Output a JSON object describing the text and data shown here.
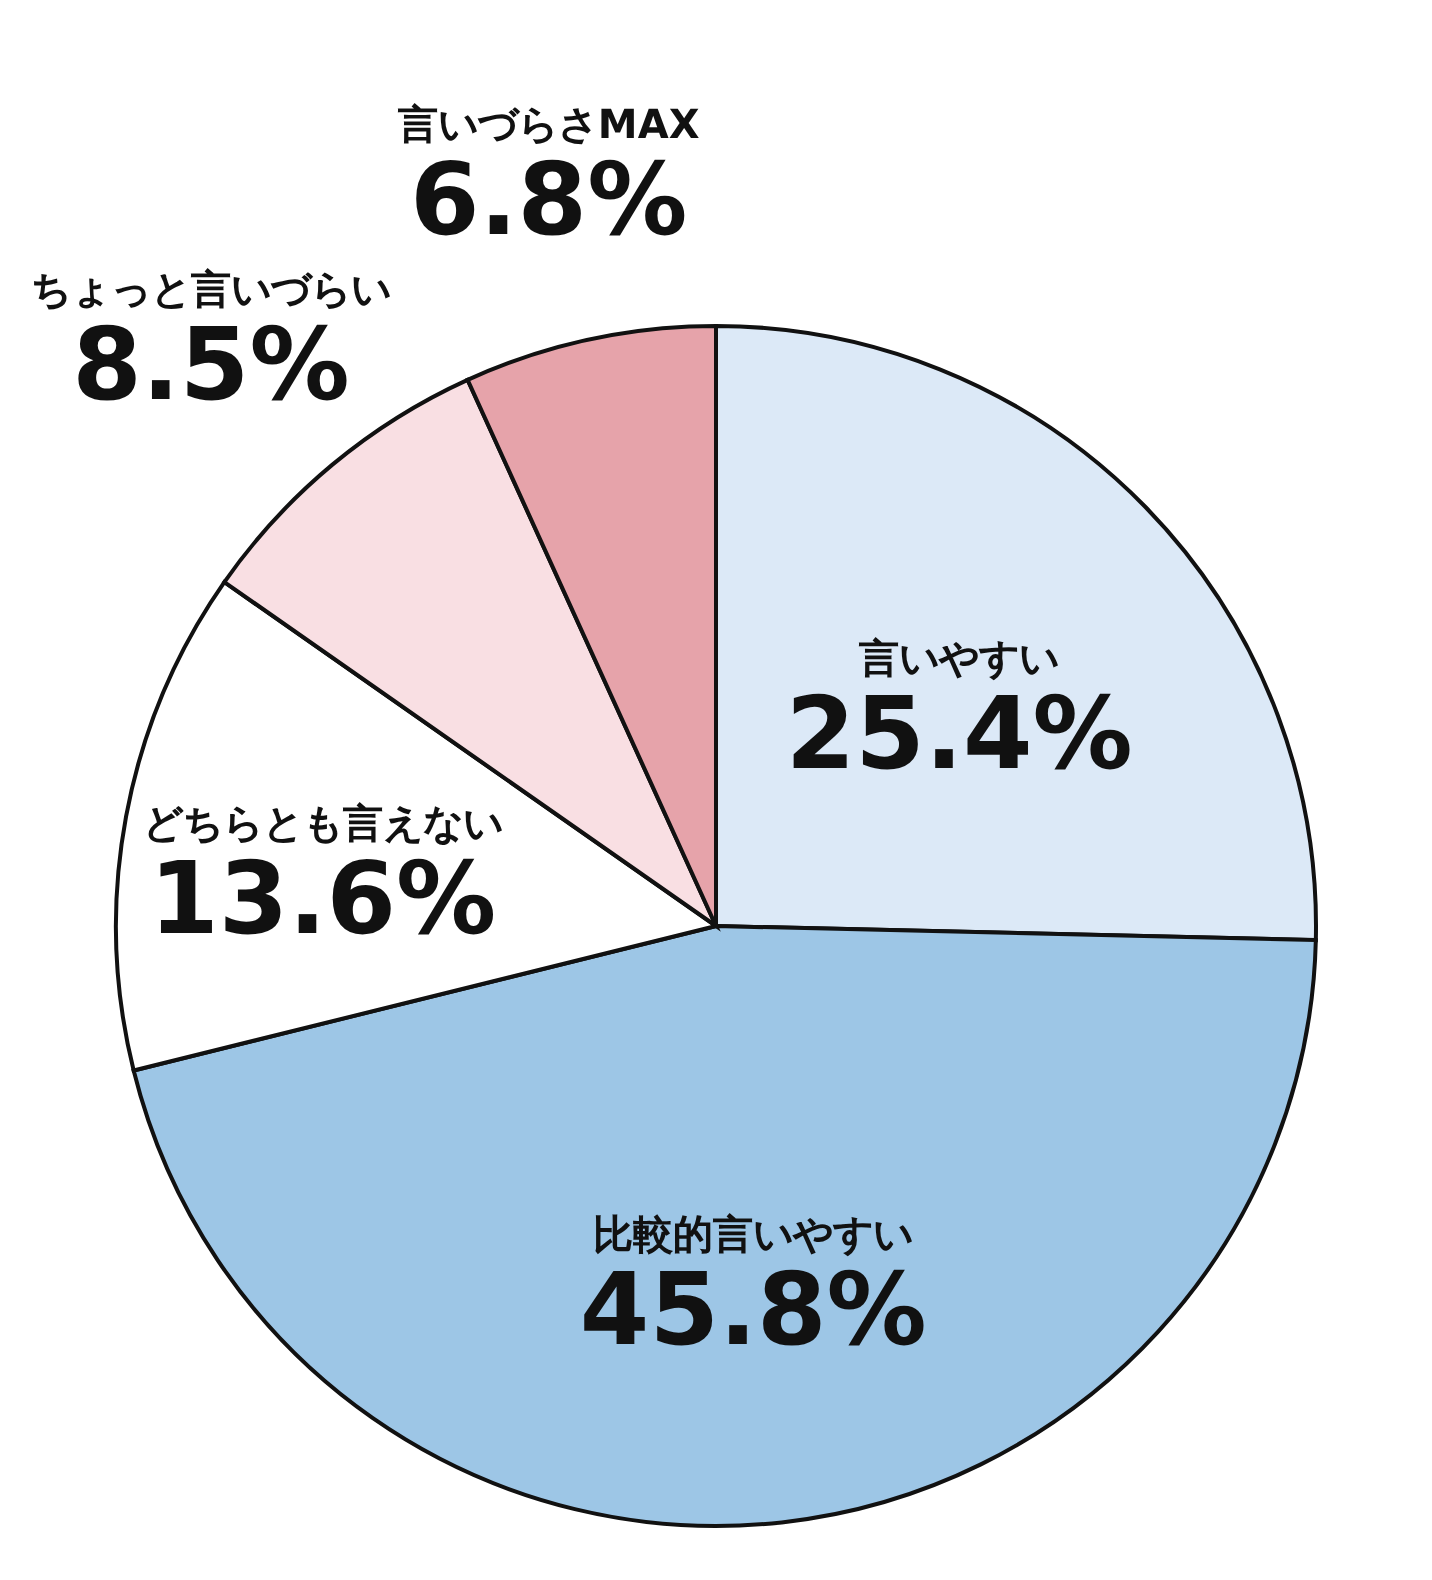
{
  "chart_data": {
    "type": "pie",
    "categories": [
      "言いやすい",
      "比較的言いやすい",
      "どちらとも言えない",
      "ちょっと言いづらい",
      "言いづらさMAX"
    ],
    "values": [
      25.4,
      45.8,
      13.6,
      8.5,
      6.8
    ],
    "colors": [
      "#dce9f7",
      "#9dc6e6",
      "#ffffff",
      "#f9dfe3",
      "#e6a3aa"
    ],
    "value_labels": [
      "25.4%",
      "45.8%",
      "13.6%",
      "8.5%",
      "6.8%"
    ]
  }
}
